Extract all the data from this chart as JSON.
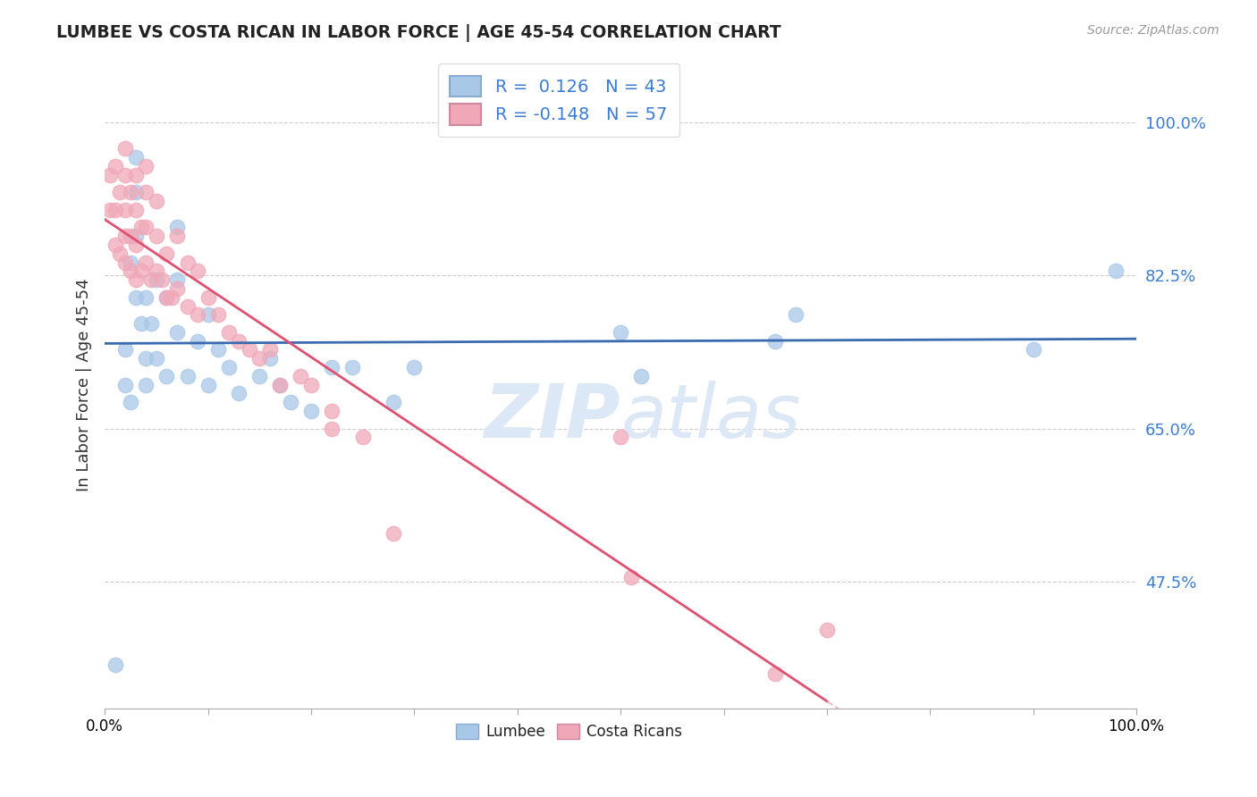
{
  "title": "LUMBEE VS COSTA RICAN IN LABOR FORCE | AGE 45-54 CORRELATION CHART",
  "source": "Source: ZipAtlas.com",
  "ylabel": "In Labor Force | Age 45-54",
  "xlim": [
    0.0,
    1.0
  ],
  "ylim": [
    0.33,
    1.07
  ],
  "yticks": [
    0.475,
    0.65,
    0.825,
    1.0
  ],
  "ytick_labels": [
    "47.5%",
    "65.0%",
    "82.5%",
    "100.0%"
  ],
  "xticks": [
    0.0,
    0.1,
    0.2,
    0.3,
    0.4,
    0.5,
    0.6,
    0.7,
    0.8,
    0.9,
    1.0
  ],
  "lumbee_R": 0.126,
  "lumbee_N": 43,
  "costa_R": -0.148,
  "costa_N": 57,
  "blue_color": "#a8c8e8",
  "pink_color": "#f0a8b8",
  "blue_line_color": "#3a6baf",
  "pink_line_color": "#e05070",
  "pink_dash_color": "#e8a0b0",
  "watermark_color": "#dce8f5",
  "lumbee_x": [
    0.01,
    0.02,
    0.02,
    0.025,
    0.025,
    0.03,
    0.03,
    0.03,
    0.03,
    0.035,
    0.04,
    0.04,
    0.04,
    0.045,
    0.05,
    0.05,
    0.06,
    0.06,
    0.07,
    0.07,
    0.07,
    0.08,
    0.09,
    0.1,
    0.1,
    0.11,
    0.12,
    0.13,
    0.15,
    0.16,
    0.17,
    0.18,
    0.2,
    0.22,
    0.24,
    0.28,
    0.3,
    0.5,
    0.52,
    0.65,
    0.67,
    0.9,
    0.98
  ],
  "lumbee_y": [
    0.38,
    0.7,
    0.74,
    0.68,
    0.84,
    0.8,
    0.87,
    0.92,
    0.96,
    0.77,
    0.7,
    0.73,
    0.8,
    0.77,
    0.73,
    0.82,
    0.71,
    0.8,
    0.76,
    0.82,
    0.88,
    0.71,
    0.75,
    0.7,
    0.78,
    0.74,
    0.72,
    0.69,
    0.71,
    0.73,
    0.7,
    0.68,
    0.67,
    0.72,
    0.72,
    0.68,
    0.72,
    0.76,
    0.71,
    0.75,
    0.78,
    0.74,
    0.83
  ],
  "costa_x": [
    0.005,
    0.005,
    0.01,
    0.01,
    0.01,
    0.015,
    0.015,
    0.02,
    0.02,
    0.02,
    0.02,
    0.02,
    0.025,
    0.025,
    0.025,
    0.03,
    0.03,
    0.03,
    0.03,
    0.035,
    0.035,
    0.04,
    0.04,
    0.04,
    0.04,
    0.045,
    0.05,
    0.05,
    0.05,
    0.055,
    0.06,
    0.06,
    0.065,
    0.07,
    0.07,
    0.08,
    0.08,
    0.09,
    0.09,
    0.1,
    0.11,
    0.12,
    0.13,
    0.14,
    0.15,
    0.16,
    0.17,
    0.19,
    0.2,
    0.22,
    0.22,
    0.25,
    0.28,
    0.5,
    0.51,
    0.65,
    0.7
  ],
  "costa_y": [
    0.9,
    0.94,
    0.86,
    0.9,
    0.95,
    0.85,
    0.92,
    0.84,
    0.87,
    0.9,
    0.94,
    0.97,
    0.83,
    0.87,
    0.92,
    0.82,
    0.86,
    0.9,
    0.94,
    0.83,
    0.88,
    0.84,
    0.88,
    0.92,
    0.95,
    0.82,
    0.83,
    0.87,
    0.91,
    0.82,
    0.8,
    0.85,
    0.8,
    0.81,
    0.87,
    0.79,
    0.84,
    0.78,
    0.83,
    0.8,
    0.78,
    0.76,
    0.75,
    0.74,
    0.73,
    0.74,
    0.7,
    0.71,
    0.7,
    0.65,
    0.67,
    0.64,
    0.53,
    0.64,
    0.48,
    0.37,
    0.42
  ]
}
